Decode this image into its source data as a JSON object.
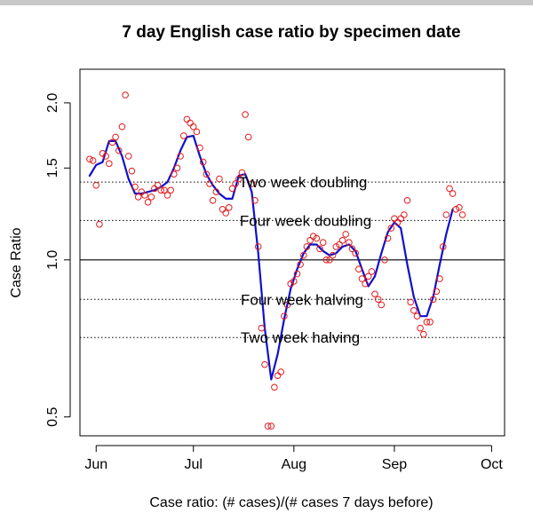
{
  "chart_data": {
    "type": "scatter",
    "title": "7 day English case ratio by specimen date",
    "xlabel": "Case ratio: (# cases)/(# cases 7 days before)",
    "ylabel": "Case Ratio",
    "x_axis": {
      "unit": "date",
      "range": [
        "2020-05-27",
        "2020-10-05"
      ],
      "ticks": [
        {
          "label": "Jun",
          "date": "2020-06-01"
        },
        {
          "label": "Jul",
          "date": "2020-07-01"
        },
        {
          "label": "Aug",
          "date": "2020-08-01"
        },
        {
          "label": "Sep",
          "date": "2020-09-01"
        },
        {
          "label": "Oct",
          "date": "2020-10-01"
        }
      ]
    },
    "y_axis": {
      "scale": "log",
      "range": [
        0.46,
        2.32
      ],
      "ticks": [
        {
          "label": "0.5",
          "value": 0.5
        },
        {
          "label": "1.0",
          "value": 1.0
        },
        {
          "label": "1.5",
          "value": 1.5
        },
        {
          "label": "2.0",
          "value": 2.0
        }
      ]
    },
    "reference_lines": [
      {
        "label": "Two week doubling",
        "value": 1.41,
        "style": "dotted"
      },
      {
        "label": "Four week doubling",
        "value": 1.19,
        "style": "dotted"
      },
      {
        "label": "",
        "value": 1.0,
        "style": "solid"
      },
      {
        "label": "Four week halving",
        "value": 0.84,
        "style": "dotted"
      },
      {
        "label": "Two week halving",
        "value": 0.71,
        "style": "dotted"
      }
    ],
    "points": {
      "color": "#e31a1c",
      "data": [
        {
          "x": "2020-05-30",
          "y": 1.56
        },
        {
          "x": "2020-05-31",
          "y": 1.55
        },
        {
          "x": "2020-06-01",
          "y": 1.39
        },
        {
          "x": "2020-06-02",
          "y": 1.17
        },
        {
          "x": "2020-06-03",
          "y": 1.6
        },
        {
          "x": "2020-06-04",
          "y": 1.58
        },
        {
          "x": "2020-06-05",
          "y": 1.53
        },
        {
          "x": "2020-06-06",
          "y": 1.68
        },
        {
          "x": "2020-06-07",
          "y": 1.72
        },
        {
          "x": "2020-06-08",
          "y": 1.62
        },
        {
          "x": "2020-06-09",
          "y": 1.8
        },
        {
          "x": "2020-06-10",
          "y": 2.07
        },
        {
          "x": "2020-06-11",
          "y": 1.58
        },
        {
          "x": "2020-06-12",
          "y": 1.48
        },
        {
          "x": "2020-06-13",
          "y": 1.38
        },
        {
          "x": "2020-06-14",
          "y": 1.32
        },
        {
          "x": "2020-06-15",
          "y": 1.35
        },
        {
          "x": "2020-06-16",
          "y": 1.33
        },
        {
          "x": "2020-06-17",
          "y": 1.29
        },
        {
          "x": "2020-06-18",
          "y": 1.32
        },
        {
          "x": "2020-06-19",
          "y": 1.37
        },
        {
          "x": "2020-06-20",
          "y": 1.39
        },
        {
          "x": "2020-06-21",
          "y": 1.36
        },
        {
          "x": "2020-06-22",
          "y": 1.36
        },
        {
          "x": "2020-06-23",
          "y": 1.33
        },
        {
          "x": "2020-06-24",
          "y": 1.36
        },
        {
          "x": "2020-06-25",
          "y": 1.46
        },
        {
          "x": "2020-06-26",
          "y": 1.5
        },
        {
          "x": "2020-06-27",
          "y": 1.58
        },
        {
          "x": "2020-06-28",
          "y": 1.73
        },
        {
          "x": "2020-06-29",
          "y": 1.86
        },
        {
          "x": "2020-06-30",
          "y": 1.83
        },
        {
          "x": "2020-07-01",
          "y": 1.8
        },
        {
          "x": "2020-07-02",
          "y": 1.76
        },
        {
          "x": "2020-07-03",
          "y": 1.64
        },
        {
          "x": "2020-07-04",
          "y": 1.54
        },
        {
          "x": "2020-07-05",
          "y": 1.46
        },
        {
          "x": "2020-07-06",
          "y": 1.4
        },
        {
          "x": "2020-07-07",
          "y": 1.3
        },
        {
          "x": "2020-07-08",
          "y": 1.35
        },
        {
          "x": "2020-07-09",
          "y": 1.43
        },
        {
          "x": "2020-07-10",
          "y": 1.25
        },
        {
          "x": "2020-07-11",
          "y": 1.23
        },
        {
          "x": "2020-07-12",
          "y": 1.26
        },
        {
          "x": "2020-07-13",
          "y": 1.37
        },
        {
          "x": "2020-07-14",
          "y": 1.4
        },
        {
          "x": "2020-07-15",
          "y": 1.43
        },
        {
          "x": "2020-07-16",
          "y": 1.47
        },
        {
          "x": "2020-07-17",
          "y": 1.9
        },
        {
          "x": "2020-07-18",
          "y": 1.72
        },
        {
          "x": "2020-07-19",
          "y": 1.4
        },
        {
          "x": "2020-07-20",
          "y": 1.3
        },
        {
          "x": "2020-07-21",
          "y": 1.06
        },
        {
          "x": "2020-07-22",
          "y": 0.74
        },
        {
          "x": "2020-07-23",
          "y": 0.63
        },
        {
          "x": "2020-07-24",
          "y": 0.48
        },
        {
          "x": "2020-07-25",
          "y": 0.48
        },
        {
          "x": "2020-07-26",
          "y": 0.57
        },
        {
          "x": "2020-07-27",
          "y": 0.6
        },
        {
          "x": "2020-07-28",
          "y": 0.61
        },
        {
          "x": "2020-07-29",
          "y": 0.78
        },
        {
          "x": "2020-07-30",
          "y": 0.82
        },
        {
          "x": "2020-07-31",
          "y": 0.9
        },
        {
          "x": "2020-08-01",
          "y": 0.91
        },
        {
          "x": "2020-08-02",
          "y": 0.94
        },
        {
          "x": "2020-08-03",
          "y": 0.98
        },
        {
          "x": "2020-08-04",
          "y": 1.02
        },
        {
          "x": "2020-08-05",
          "y": 1.06
        },
        {
          "x": "2020-08-06",
          "y": 1.09
        },
        {
          "x": "2020-08-07",
          "y": 1.11
        },
        {
          "x": "2020-08-08",
          "y": 1.1
        },
        {
          "x": "2020-08-09",
          "y": 1.05
        },
        {
          "x": "2020-08-10",
          "y": 1.08
        },
        {
          "x": "2020-08-11",
          "y": 1.0
        },
        {
          "x": "2020-08-12",
          "y": 1.0
        },
        {
          "x": "2020-08-13",
          "y": 1.02
        },
        {
          "x": "2020-08-14",
          "y": 1.06
        },
        {
          "x": "2020-08-15",
          "y": 1.07
        },
        {
          "x": "2020-08-16",
          "y": 1.09
        },
        {
          "x": "2020-08-17",
          "y": 1.12
        },
        {
          "x": "2020-08-18",
          "y": 1.08
        },
        {
          "x": "2020-08-19",
          "y": 1.05
        },
        {
          "x": "2020-08-20",
          "y": 1.03
        },
        {
          "x": "2020-08-21",
          "y": 0.96
        },
        {
          "x": "2020-08-22",
          "y": 0.92
        },
        {
          "x": "2020-08-23",
          "y": 0.9
        },
        {
          "x": "2020-08-24",
          "y": 0.93
        },
        {
          "x": "2020-08-25",
          "y": 0.95
        },
        {
          "x": "2020-08-26",
          "y": 0.86
        },
        {
          "x": "2020-08-27",
          "y": 0.84
        },
        {
          "x": "2020-08-28",
          "y": 0.82
        },
        {
          "x": "2020-08-29",
          "y": 1.0
        },
        {
          "x": "2020-08-30",
          "y": 1.1
        },
        {
          "x": "2020-08-31",
          "y": 1.15
        },
        {
          "x": "2020-09-01",
          "y": 1.2
        },
        {
          "x": "2020-09-02",
          "y": 1.18
        },
        {
          "x": "2020-09-03",
          "y": 1.2
        },
        {
          "x": "2020-09-04",
          "y": 1.22
        },
        {
          "x": "2020-09-05",
          "y": 1.3
        },
        {
          "x": "2020-09-06",
          "y": 0.83
        },
        {
          "x": "2020-09-07",
          "y": 0.8
        },
        {
          "x": "2020-09-08",
          "y": 0.78
        },
        {
          "x": "2020-09-09",
          "y": 0.74
        },
        {
          "x": "2020-09-10",
          "y": 0.72
        },
        {
          "x": "2020-09-11",
          "y": 0.76
        },
        {
          "x": "2020-09-12",
          "y": 0.76
        },
        {
          "x": "2020-09-13",
          "y": 0.84
        },
        {
          "x": "2020-09-14",
          "y": 0.87
        },
        {
          "x": "2020-09-15",
          "y": 0.92
        },
        {
          "x": "2020-09-16",
          "y": 1.06
        },
        {
          "x": "2020-09-17",
          "y": 1.22
        },
        {
          "x": "2020-09-18",
          "y": 1.37
        },
        {
          "x": "2020-09-19",
          "y": 1.34
        },
        {
          "x": "2020-09-20",
          "y": 1.25
        },
        {
          "x": "2020-09-21",
          "y": 1.26
        },
        {
          "x": "2020-09-22",
          "y": 1.22
        }
      ]
    },
    "smooth_line": {
      "color": "#1010cc",
      "data": [
        {
          "x": "2020-05-30",
          "y": 1.45
        },
        {
          "x": "2020-06-01",
          "y": 1.52
        },
        {
          "x": "2020-06-03",
          "y": 1.54
        },
        {
          "x": "2020-06-05",
          "y": 1.69
        },
        {
          "x": "2020-06-07",
          "y": 1.69
        },
        {
          "x": "2020-06-09",
          "y": 1.58
        },
        {
          "x": "2020-06-11",
          "y": 1.43
        },
        {
          "x": "2020-06-13",
          "y": 1.34
        },
        {
          "x": "2020-06-15",
          "y": 1.34
        },
        {
          "x": "2020-06-17",
          "y": 1.35
        },
        {
          "x": "2020-06-19",
          "y": 1.36
        },
        {
          "x": "2020-06-21",
          "y": 1.38
        },
        {
          "x": "2020-06-23",
          "y": 1.41
        },
        {
          "x": "2020-06-25",
          "y": 1.5
        },
        {
          "x": "2020-06-27",
          "y": 1.62
        },
        {
          "x": "2020-06-29",
          "y": 1.72
        },
        {
          "x": "2020-07-01",
          "y": 1.73
        },
        {
          "x": "2020-07-03",
          "y": 1.58
        },
        {
          "x": "2020-07-05",
          "y": 1.46
        },
        {
          "x": "2020-07-07",
          "y": 1.39
        },
        {
          "x": "2020-07-09",
          "y": 1.34
        },
        {
          "x": "2020-07-11",
          "y": 1.31
        },
        {
          "x": "2020-07-13",
          "y": 1.31
        },
        {
          "x": "2020-07-15",
          "y": 1.45
        },
        {
          "x": "2020-07-17",
          "y": 1.46
        },
        {
          "x": "2020-07-19",
          "y": 1.35
        },
        {
          "x": "2020-07-21",
          "y": 1.03
        },
        {
          "x": "2020-07-23",
          "y": 0.74
        },
        {
          "x": "2020-07-25",
          "y": 0.59
        },
        {
          "x": "2020-07-27",
          "y": 0.66
        },
        {
          "x": "2020-07-29",
          "y": 0.77
        },
        {
          "x": "2020-07-31",
          "y": 0.88
        },
        {
          "x": "2020-08-02",
          "y": 0.96
        },
        {
          "x": "2020-08-04",
          "y": 1.03
        },
        {
          "x": "2020-08-06",
          "y": 1.07
        },
        {
          "x": "2020-08-08",
          "y": 1.07
        },
        {
          "x": "2020-08-10",
          "y": 1.04
        },
        {
          "x": "2020-08-12",
          "y": 1.02
        },
        {
          "x": "2020-08-14",
          "y": 1.03
        },
        {
          "x": "2020-08-16",
          "y": 1.06
        },
        {
          "x": "2020-08-18",
          "y": 1.07
        },
        {
          "x": "2020-08-20",
          "y": 1.04
        },
        {
          "x": "2020-08-22",
          "y": 0.96
        },
        {
          "x": "2020-08-24",
          "y": 0.89
        },
        {
          "x": "2020-08-26",
          "y": 0.93
        },
        {
          "x": "2020-08-28",
          "y": 1.03
        },
        {
          "x": "2020-08-30",
          "y": 1.13
        },
        {
          "x": "2020-09-01",
          "y": 1.18
        },
        {
          "x": "2020-09-03",
          "y": 1.15
        },
        {
          "x": "2020-09-05",
          "y": 0.98
        },
        {
          "x": "2020-09-07",
          "y": 0.85
        },
        {
          "x": "2020-09-09",
          "y": 0.78
        },
        {
          "x": "2020-09-11",
          "y": 0.78
        },
        {
          "x": "2020-09-13",
          "y": 0.85
        },
        {
          "x": "2020-09-15",
          "y": 0.98
        },
        {
          "x": "2020-09-17",
          "y": 1.12
        },
        {
          "x": "2020-09-19",
          "y": 1.25
        }
      ]
    },
    "grid": false,
    "legend": "none"
  }
}
